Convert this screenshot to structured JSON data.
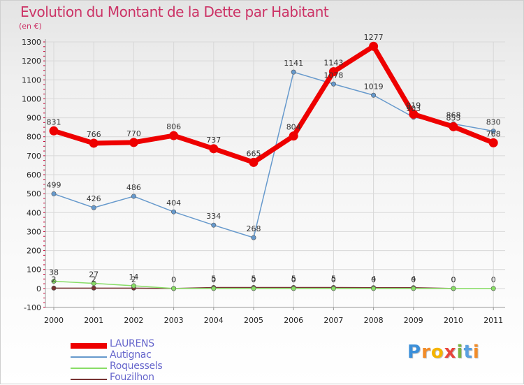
{
  "title": "Evolution du Montant de la Dette par Habitant",
  "subtitle": "(en €)",
  "logo": {
    "letters": [
      "P",
      "r",
      "o",
      "x",
      "i",
      "t",
      "i"
    ],
    "colors": [
      "#3b8fd9",
      "#f28c28",
      "#f5b400",
      "#e8453c",
      "#7cb342",
      "#5aa0e0",
      "#f28c28"
    ]
  },
  "chart_data": {
    "type": "line",
    "x": [
      "2000",
      "2001",
      "2002",
      "2003",
      "2004",
      "2005",
      "2006",
      "2007",
      "2008",
      "2009",
      "2010",
      "2011"
    ],
    "yticks": [
      -100,
      0,
      100,
      200,
      300,
      400,
      500,
      600,
      700,
      800,
      900,
      1000,
      1100,
      1200,
      1300
    ],
    "ylim": [
      -100,
      1300
    ],
    "grid": true,
    "legend_position": "bottom-left",
    "series": [
      {
        "name": "LAURENS",
        "color": "#ee0000",
        "values": [
          831,
          766,
          770,
          806,
          737,
          665,
          804,
          1143,
          1277,
          919,
          853,
          768
        ],
        "labels": [
          "831",
          "766",
          "770",
          "806",
          "737",
          "665",
          "804",
          "1143",
          "1277",
          "919",
          "853",
          "768"
        ]
      },
      {
        "name": "Autignac",
        "color": "#6699cc",
        "values": [
          499,
          426,
          486,
          404,
          334,
          268,
          1141,
          1078,
          1019,
          903,
          868,
          830
        ],
        "labels": [
          "499",
          "426",
          "486",
          "404",
          "334",
          "268",
          "1141",
          "1078",
          "1019",
          "903",
          "868",
          "830"
        ]
      },
      {
        "name": "Roquessels",
        "color": "#88dd66",
        "values": [
          38,
          27,
          14,
          0,
          0,
          0,
          0,
          0,
          0,
          0,
          0,
          0
        ],
        "labels": [
          "38",
          "27",
          "14",
          "0",
          "0",
          "0",
          "0",
          "0",
          "0",
          "0",
          "0",
          "0"
        ]
      },
      {
        "name": "Fouzilhon",
        "color": "#773333",
        "values": [
          2,
          2,
          2,
          0,
          5,
          5,
          5,
          5,
          4,
          4,
          0,
          null
        ],
        "labels": [
          "2",
          "2",
          "2",
          "0",
          "5",
          "5",
          "5",
          "5",
          "4",
          "4",
          "0",
          null
        ]
      }
    ]
  }
}
